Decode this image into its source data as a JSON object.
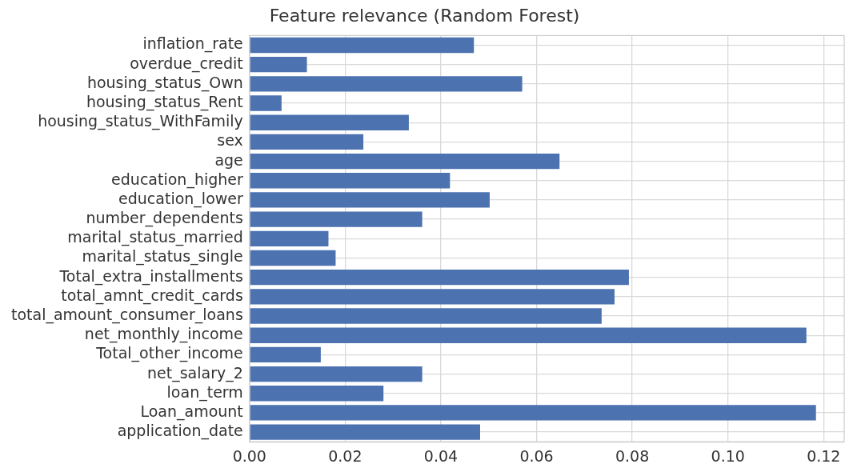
{
  "chart_data": {
    "type": "bar",
    "orientation": "horizontal",
    "title": "Feature relevance (Random Forest)",
    "categories": [
      "inflation_rate",
      "overdue_credit",
      "housing_status_Own",
      "housing_status_Rent",
      "housing_status_WithFamily",
      "sex",
      "age",
      "education_higher",
      "education_lower",
      "number_dependents",
      "marital_status_married",
      "marital_status_single",
      "Total_extra_installments",
      "total_amnt_credit_cards",
      "total_amount_consumer_loans",
      "net_monthly_income",
      "Total_other_income",
      "net_salary_2",
      "loan_term",
      "Loan_amount",
      "application_date"
    ],
    "values": [
      0.0469,
      0.012,
      0.057,
      0.0067,
      0.0333,
      0.0238,
      0.0648,
      0.0419,
      0.0502,
      0.0361,
      0.0165,
      0.018,
      0.0793,
      0.0763,
      0.0736,
      0.1164,
      0.0149,
      0.0361,
      0.028,
      0.1184,
      0.0482
    ],
    "color": "#4c72b0",
    "xlim": [
      0,
      0.1243
    ],
    "xticks": [
      {
        "value": 0,
        "label": "0.00"
      },
      {
        "value": 0.02,
        "label": "0.02"
      },
      {
        "value": 0.04,
        "label": "0.04"
      },
      {
        "value": 0.06,
        "label": "0.06"
      },
      {
        "value": 0.08,
        "label": "0.08"
      },
      {
        "value": 0.1,
        "label": "0.10"
      },
      {
        "value": 0.12,
        "label": "0.12"
      }
    ],
    "grid": true,
    "legend": false
  }
}
